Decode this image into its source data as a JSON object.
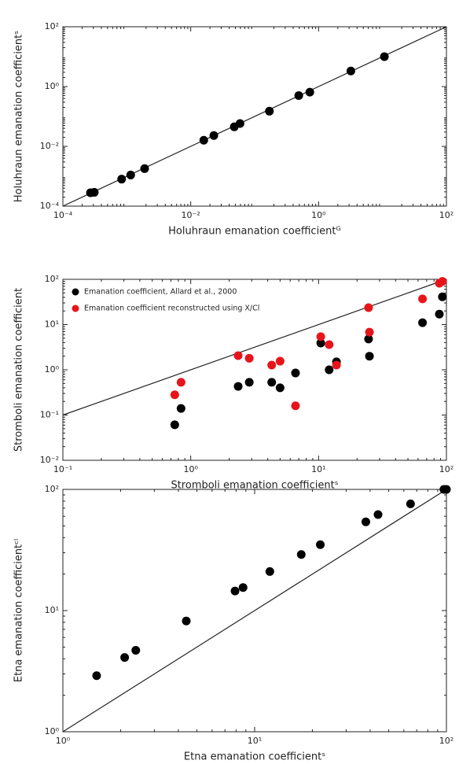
{
  "chart_data": [
    {
      "type": "scatter",
      "log": true,
      "identity_line": true,
      "xlabel": "Holuhraun emanation coefficientᴳ",
      "ylabel": "Holuhraun emanation coefficientˢ",
      "xlim": [
        0.0001,
        100
      ],
      "ylim": [
        0.0001,
        100
      ],
      "xticks": [
        {
          "value": 0.0001,
          "label": "10⁻⁴"
        },
        {
          "value": 0.01,
          "label": "10⁻²"
        },
        {
          "value": 1,
          "label": "10⁰"
        },
        {
          "value": 100,
          "label": "10²"
        }
      ],
      "yticks": [
        {
          "value": 0.0001,
          "label": "10⁻⁴"
        },
        {
          "value": 0.01,
          "label": "10⁻²"
        },
        {
          "value": 1,
          "label": "10⁰"
        },
        {
          "value": 100,
          "label": "10²"
        }
      ],
      "series": [
        {
          "color": "#000000",
          "x": [
            0.00027,
            0.00031,
            0.00083,
            0.00115,
            0.0019,
            0.016,
            0.023,
            0.048,
            0.059,
            0.17,
            0.49,
            0.73,
            3.2,
            10.7
          ],
          "values": [
            0.00028,
            0.00029,
            0.0008,
            0.0011,
            0.0018,
            0.016,
            0.023,
            0.045,
            0.058,
            0.15,
            0.5,
            0.65,
            3.3,
            10
          ]
        }
      ]
    },
    {
      "type": "scatter",
      "log": true,
      "identity_line": true,
      "legend": "upper left",
      "xlabel": "Stromboli emanation coefficientˢ",
      "ylabel": "Stromboli emanation coefficient",
      "xlim": [
        0.1,
        100
      ],
      "ylim": [
        0.01,
        100
      ],
      "xticks": [
        {
          "value": 0.1,
          "label": "10⁻¹"
        },
        {
          "value": 1,
          "label": "10⁰"
        },
        {
          "value": 10,
          "label": "10¹"
        },
        {
          "value": 100,
          "label": "10²"
        }
      ],
      "yticks": [
        {
          "value": 0.01,
          "label": "10⁻²"
        },
        {
          "value": 0.1,
          "label": "10⁻¹"
        },
        {
          "value": 1,
          "label": "10⁰"
        },
        {
          "value": 10,
          "label": "10¹"
        },
        {
          "value": 100,
          "label": "10²"
        }
      ],
      "series": [
        {
          "name": "Emanation coefficient, Allard et al., 2000",
          "color": "#000000",
          "x": [
            0.75,
            0.84,
            2.35,
            2.87,
            4.3,
            5.0,
            6.6,
            10.4,
            12.1,
            13.8,
            24.6,
            25,
            65,
            88,
            93
          ],
          "values": [
            0.061,
            0.14,
            0.43,
            0.53,
            0.53,
            0.4,
            0.85,
            3.9,
            1.0,
            1.5,
            4.8,
            2.0,
            11,
            17,
            41
          ]
        },
        {
          "name": "Emanation coefficient reconstructed using X/Cl",
          "color": "#e8141b",
          "x": [
            0.75,
            0.84,
            2.35,
            2.87,
            4.3,
            5.0,
            6.6,
            10.4,
            12.1,
            13.8,
            24.6,
            25,
            65,
            88,
            93
          ],
          "values": [
            0.28,
            0.53,
            2.06,
            1.8,
            1.27,
            1.55,
            0.16,
            5.4,
            3.6,
            1.27,
            23.7,
            6.8,
            37,
            82,
            90
          ]
        }
      ]
    },
    {
      "type": "scatter",
      "log": true,
      "identity_line": true,
      "xlabel": "Etna emanation coefficientˢ",
      "ylabel": "Etna emanation coefficientᶜˡ",
      "xlim": [
        1,
        100
      ],
      "ylim": [
        1,
        100
      ],
      "xticks": [
        {
          "value": 1,
          "label": "10⁰"
        },
        {
          "value": 10,
          "label": "10¹"
        },
        {
          "value": 100,
          "label": "10²"
        }
      ],
      "yticks": [
        {
          "value": 1,
          "label": "10⁰"
        },
        {
          "value": 10,
          "label": "10¹"
        },
        {
          "value": 100,
          "label": "10²"
        }
      ],
      "series": [
        {
          "color": "#000000",
          "x": [
            1.5,
            2.1,
            2.4,
            4.4,
            7.9,
            8.7,
            12,
            17.5,
            22,
            38,
            44,
            65,
            97,
            100
          ],
          "values": [
            2.9,
            4.1,
            4.7,
            8.2,
            14.5,
            15.5,
            21,
            29,
            35,
            54,
            62,
            76,
            100,
            100
          ]
        }
      ]
    }
  ]
}
